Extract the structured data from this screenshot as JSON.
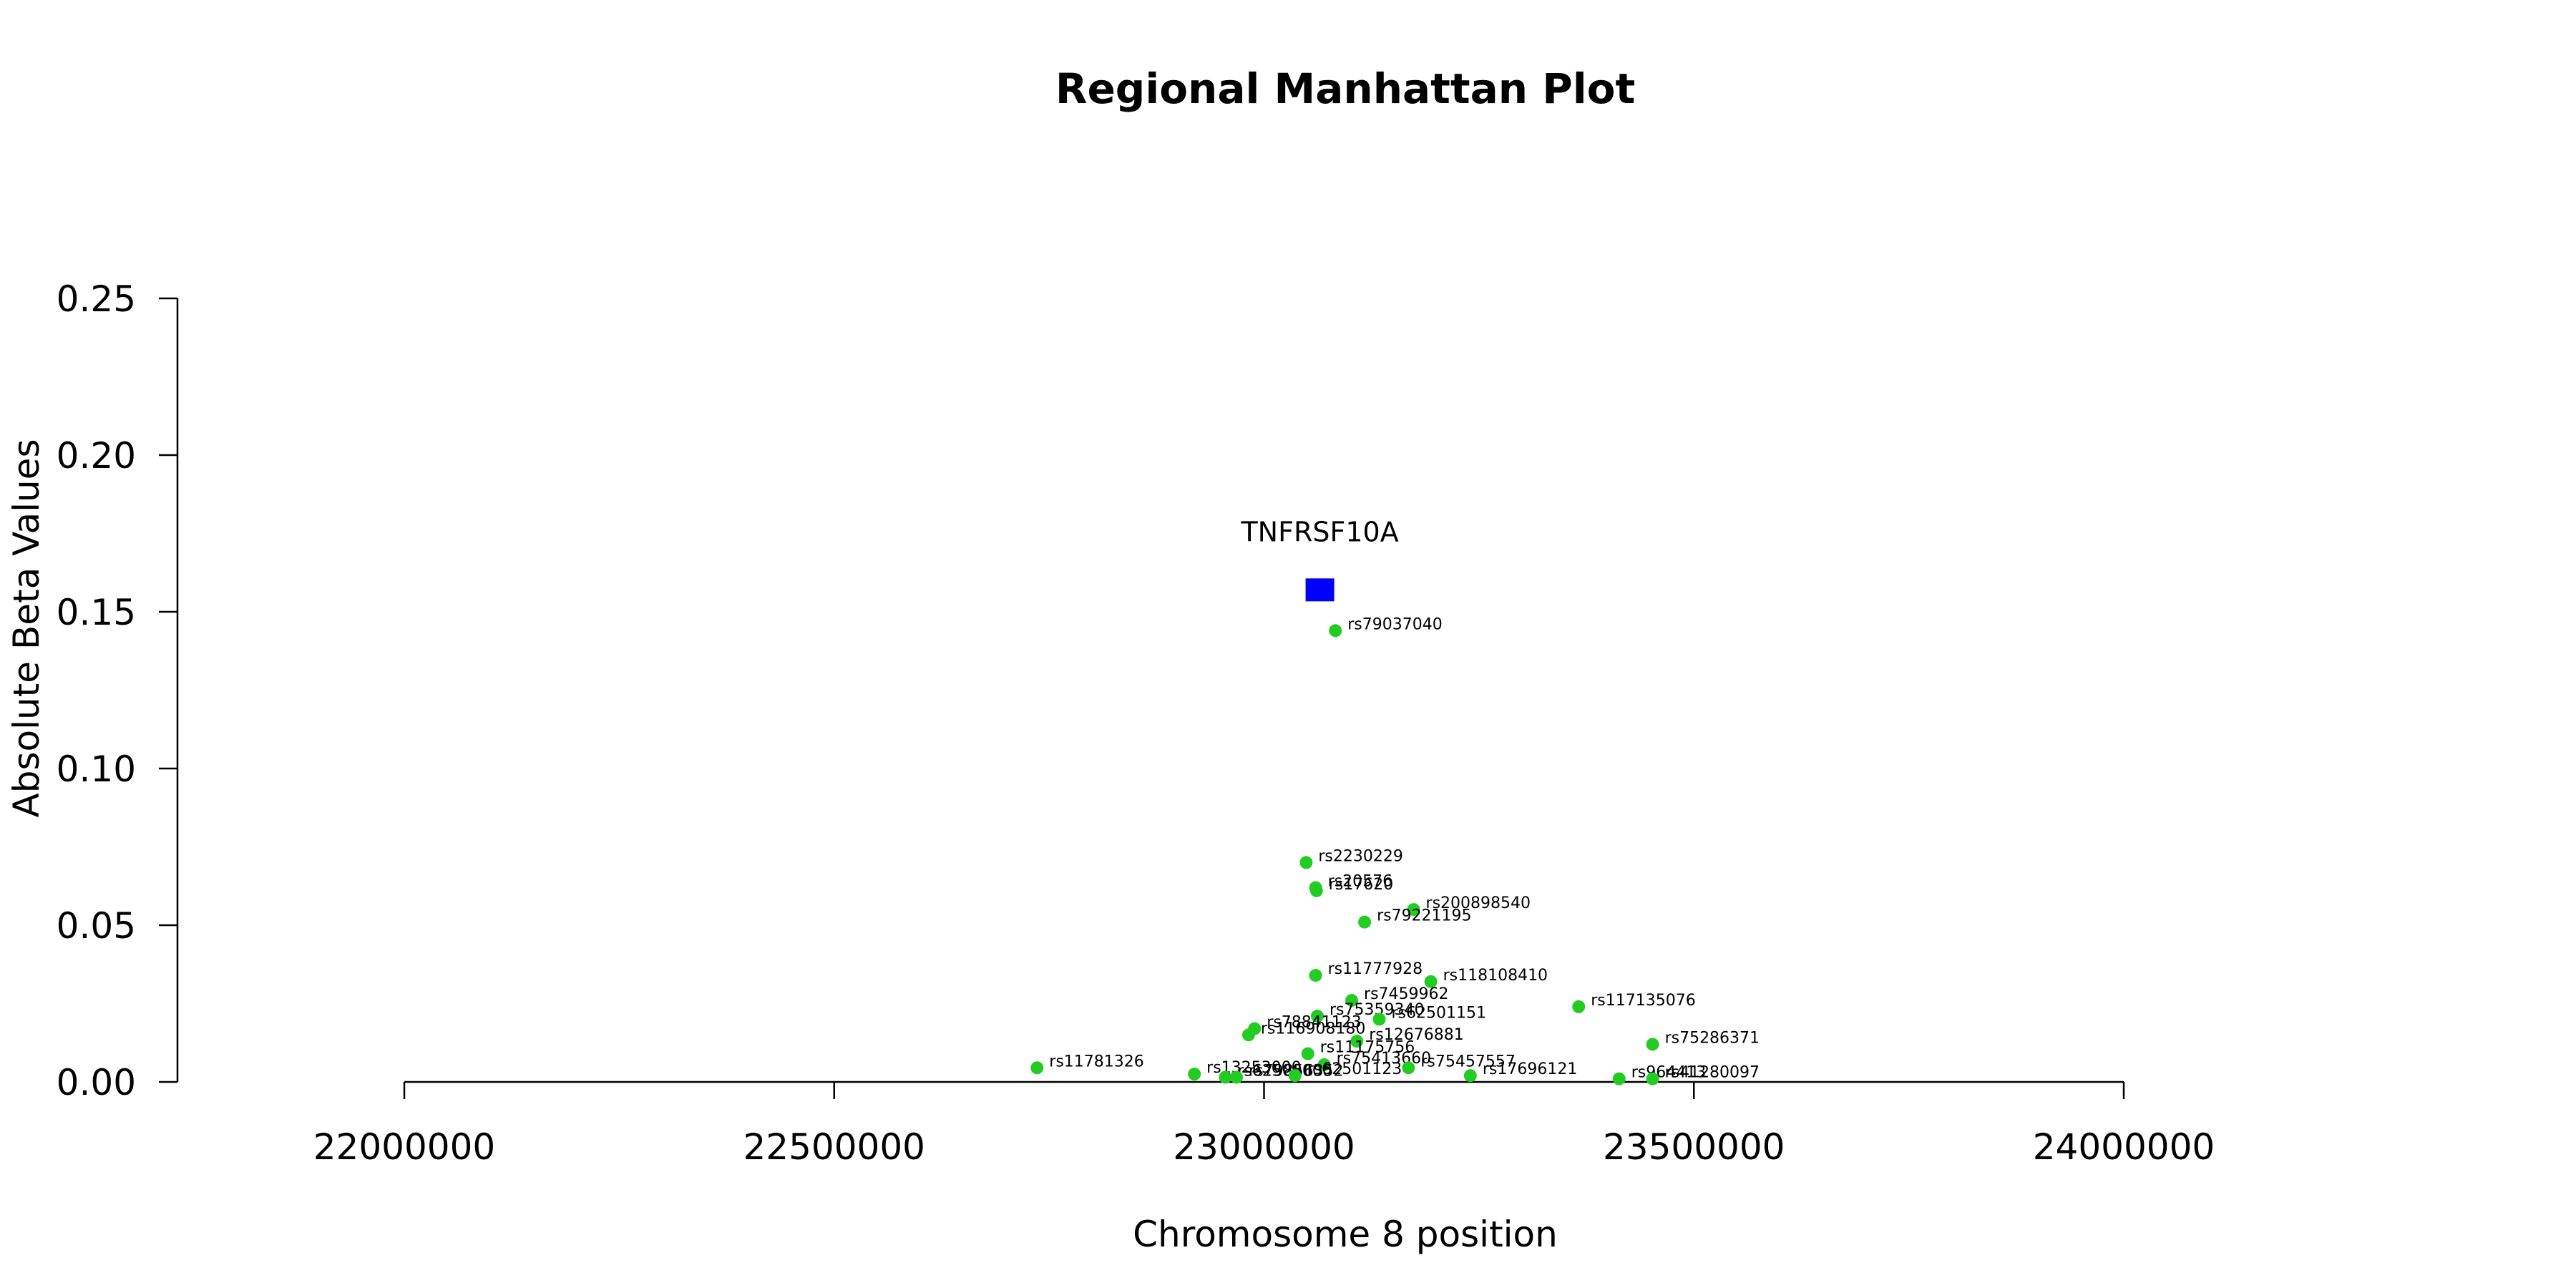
{
  "chart_data": {
    "type": "scatter",
    "title": "Regional Manhattan Plot",
    "xlabel": "Chromosome 8 position",
    "ylabel": "Absolute Beta Values",
    "xlim": [
      22000000,
      24000000
    ],
    "ylim": [
      0,
      0.25
    ],
    "x_ticks": [
      22000000,
      22500000,
      23000000,
      23500000,
      24000000
    ],
    "x_tick_labels": [
      "22000000",
      "22500000",
      "23000000",
      "23500000",
      "24000000"
    ],
    "y_ticks": [
      0,
      0.05,
      0.1,
      0.15,
      0.2,
      0.25
    ],
    "y_tick_labels": [
      "0.00",
      "0.05",
      "0.10",
      "0.15",
      "0.20",
      "0.25"
    ],
    "grid": false,
    "colors": {
      "gene": "#0000ff",
      "snp": "#22cc22"
    },
    "gene": {
      "name": "TNFRSF10A",
      "x": 23065000,
      "y": 0.157
    },
    "snps": [
      {
        "label": "rs79037040",
        "x": 23083000,
        "y": 0.144
      },
      {
        "label": "rs2230229",
        "x": 23049000,
        "y": 0.07
      },
      {
        "label": "rs20576",
        "x": 23060000,
        "y": 0.062
      },
      {
        "label": "rs17620",
        "x": 23061000,
        "y": 0.061
      },
      {
        "label": "rs200898540",
        "x": 23174000,
        "y": 0.055
      },
      {
        "label": "rs79221195",
        "x": 23117000,
        "y": 0.051
      },
      {
        "label": "rs11777928",
        "x": 23060000,
        "y": 0.034
      },
      {
        "label": "rs118108410",
        "x": 23194000,
        "y": 0.032
      },
      {
        "label": "rs7459962",
        "x": 23102000,
        "y": 0.026
      },
      {
        "label": "rs117135076",
        "x": 23366000,
        "y": 0.024
      },
      {
        "label": "rs75359340",
        "x": 23062000,
        "y": 0.021
      },
      {
        "label": "rs62501151",
        "x": 23134000,
        "y": 0.02
      },
      {
        "label": "rs78841123",
        "x": 22989000,
        "y": 0.017
      },
      {
        "label": "rs116908180",
        "x": 22982000,
        "y": 0.015
      },
      {
        "label": "rs12676881",
        "x": 23108000,
        "y": 0.013
      },
      {
        "label": "rs75286371",
        "x": 23452000,
        "y": 0.012
      },
      {
        "label": "rs11175756",
        "x": 23051000,
        "y": 0.009
      },
      {
        "label": "rs11781326",
        "x": 22736000,
        "y": 0.0045
      },
      {
        "label": "rs75413660",
        "x": 23070000,
        "y": 0.0055
      },
      {
        "label": "rs75457557",
        "x": 23168000,
        "y": 0.0045
      },
      {
        "label": "rs13253000",
        "x": 22919000,
        "y": 0.0025
      },
      {
        "label": "rs62500000",
        "x": 22955000,
        "y": 0.0015
      },
      {
        "label": "rs79856352",
        "x": 22968000,
        "y": 0.0015
      },
      {
        "label": "rs62501123",
        "x": 23036000,
        "y": 0.002
      },
      {
        "label": "rs17696121",
        "x": 23240000,
        "y": 0.002
      },
      {
        "label": "rs964413",
        "x": 23413000,
        "y": 0.001
      },
      {
        "label": "rs41280097",
        "x": 23452000,
        "y": 0.001
      }
    ]
  }
}
